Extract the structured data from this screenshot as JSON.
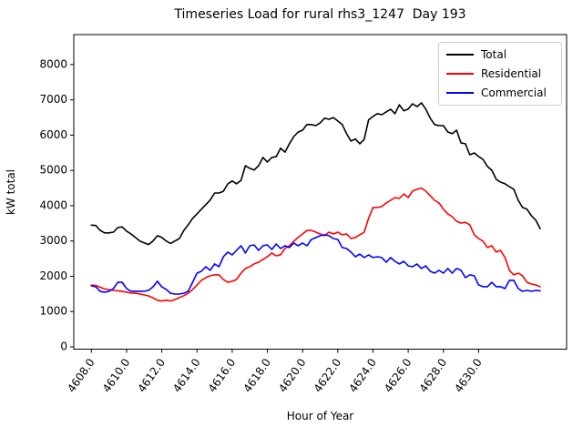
{
  "figure": {
    "title": "Timeseries Load for rural rhs3_1247  Day 193",
    "xlabel": "Hour of Year",
    "ylabel": "kW total"
  },
  "chart_data": {
    "type": "line",
    "title": "Timeseries Load for rural rhs3_1247  Day 193",
    "xlabel": "Hour of Year",
    "ylabel": "kW total",
    "grid": false,
    "legend_position": "upper right",
    "xlim": [
      4607.0,
      4635.0
    ],
    "ylim": [
      -65,
      8850
    ],
    "x_ticks": [
      "4608.0",
      "4610.0",
      "4612.0",
      "4614.0",
      "4616.0",
      "4618.0",
      "4620.0",
      "4622.0",
      "4624.0",
      "4626.0",
      "4628.0",
      "4630.0"
    ],
    "x_tick_values": [
      4608,
      4610,
      4612,
      4614,
      4616,
      4618,
      4620,
      4622,
      4624,
      4626,
      4628,
      4630
    ],
    "y_ticks": [
      "0",
      "1000",
      "2000",
      "3000",
      "4000",
      "5000",
      "6000",
      "7000",
      "8000"
    ],
    "y_tick_values": [
      0,
      1000,
      2000,
      3000,
      4000,
      5000,
      6000,
      7000,
      8000
    ],
    "x_start": 4608.0,
    "x_step": 0.25,
    "series": [
      {
        "name": "Total",
        "color": "#000000",
        "values": [
          3450,
          3440,
          3300,
          3230,
          3230,
          3250,
          3380,
          3400,
          3280,
          3200,
          3100,
          3000,
          2950,
          2900,
          3000,
          3150,
          3100,
          3000,
          2930,
          3000,
          3070,
          3300,
          3460,
          3640,
          3770,
          3900,
          4030,
          4160,
          4360,
          4360,
          4410,
          4620,
          4700,
          4620,
          4720,
          5135,
          5060,
          5010,
          5135,
          5370,
          5240,
          5370,
          5390,
          5630,
          5520,
          5755,
          5960,
          6090,
          6140,
          6300,
          6300,
          6270,
          6350,
          6480,
          6450,
          6500,
          6400,
          6300,
          6040,
          5830,
          5890,
          5755,
          5880,
          6430,
          6530,
          6610,
          6580,
          6660,
          6735,
          6610,
          6860,
          6690,
          6740,
          6890,
          6810,
          6915,
          6740,
          6480,
          6300,
          6270,
          6270,
          6090,
          6040,
          6140,
          5780,
          5755,
          5445,
          5495,
          5395,
          5315,
          5110,
          5005,
          4750,
          4670,
          4620,
          4540,
          4465,
          4155,
          3950,
          3900,
          3715,
          3590,
          3350
        ]
      },
      {
        "name": "Residential",
        "color": "#ff0000",
        "values": [
          1750,
          1740,
          1690,
          1640,
          1625,
          1600,
          1590,
          1570,
          1550,
          1525,
          1520,
          1500,
          1470,
          1445,
          1390,
          1320,
          1300,
          1320,
          1300,
          1340,
          1395,
          1450,
          1520,
          1625,
          1755,
          1885,
          1960,
          2015,
          2040,
          2040,
          1910,
          1830,
          1860,
          1910,
          2090,
          2220,
          2270,
          2350,
          2400,
          2480,
          2555,
          2660,
          2580,
          2610,
          2790,
          2865,
          2990,
          3100,
          3200,
          3300,
          3300,
          3250,
          3200,
          3150,
          3250,
          3200,
          3250,
          3175,
          3200,
          3070,
          3100,
          3175,
          3250,
          3640,
          3950,
          3950,
          3975,
          4080,
          4155,
          4230,
          4205,
          4335,
          4230,
          4415,
          4465,
          4500,
          4415,
          4285,
          4155,
          4080,
          3900,
          3770,
          3690,
          3560,
          3510,
          3530,
          3460,
          3175,
          3070,
          2995,
          2815,
          2865,
          2685,
          2735,
          2530,
          2170,
          2040,
          2090,
          2015,
          1830,
          1780,
          1755,
          1705
        ]
      },
      {
        "name": "Commercial",
        "color": "#0000ff",
        "values": [
          1730,
          1700,
          1570,
          1550,
          1570,
          1650,
          1830,
          1830,
          1650,
          1575,
          1575,
          1575,
          1575,
          1600,
          1700,
          1860,
          1700,
          1630,
          1520,
          1495,
          1495,
          1520,
          1575,
          1830,
          2090,
          2140,
          2270,
          2170,
          2350,
          2270,
          2555,
          2685,
          2605,
          2735,
          2865,
          2660,
          2865,
          2890,
          2735,
          2865,
          2890,
          2760,
          2915,
          2785,
          2865,
          2815,
          2940,
          2865,
          2940,
          2865,
          3045,
          3095,
          3150,
          3175,
          3150,
          3070,
          3045,
          2815,
          2785,
          2685,
          2555,
          2630,
          2530,
          2605,
          2530,
          2555,
          2530,
          2400,
          2530,
          2425,
          2350,
          2425,
          2295,
          2270,
          2350,
          2220,
          2295,
          2140,
          2090,
          2170,
          2090,
          2220,
          2090,
          2220,
          2170,
          1960,
          2040,
          2015,
          1755,
          1705,
          1705,
          1830,
          1705,
          1705,
          1650,
          1885,
          1885,
          1650,
          1575,
          1600,
          1575,
          1600,
          1590
        ]
      }
    ]
  }
}
